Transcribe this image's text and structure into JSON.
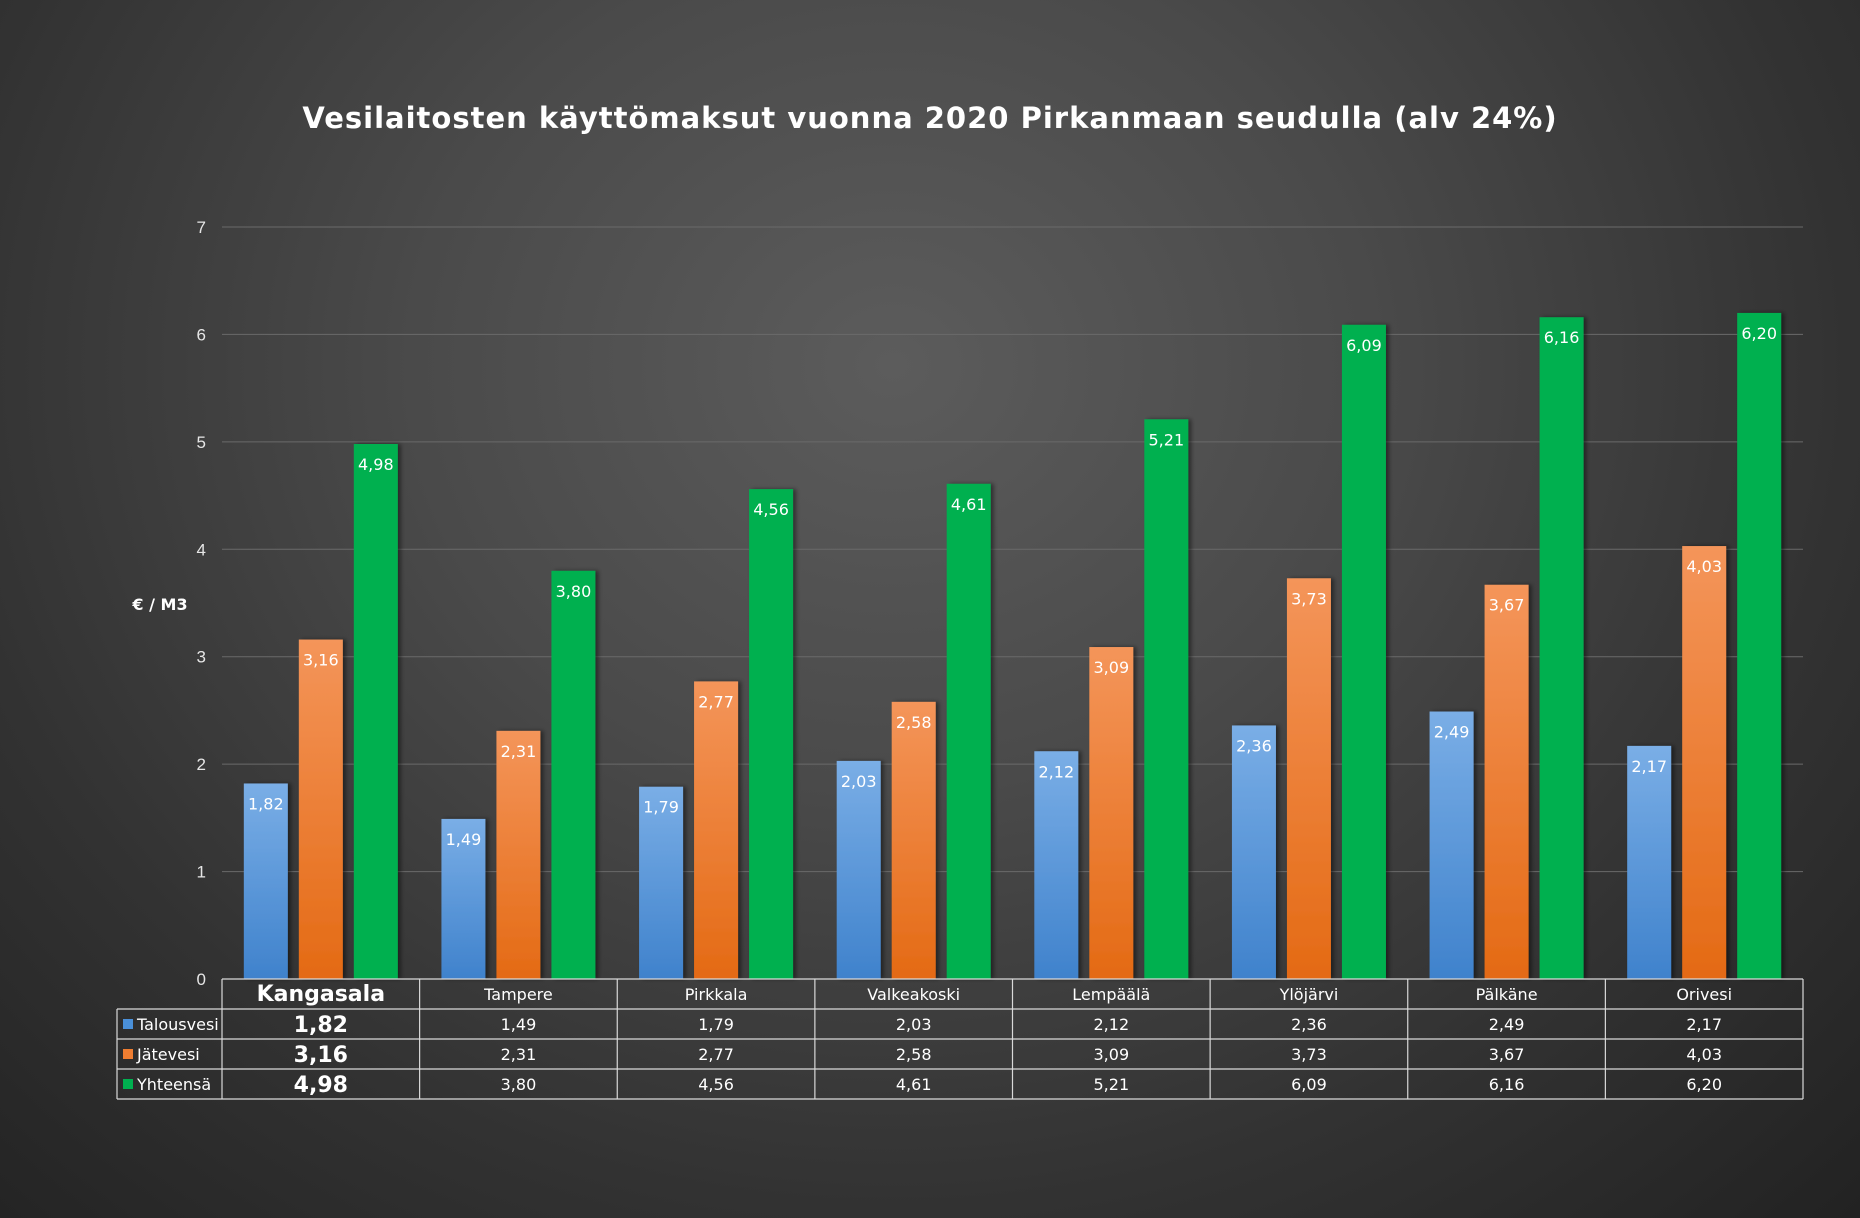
{
  "chart_data": {
    "type": "bar",
    "title": "Vesilaitosten käyttömaksut vuonna 2020 Pirkanmaan seudulla (alv 24%)",
    "ylabel": "€ / M3",
    "xlabel": "",
    "ylim": [
      0,
      7
    ],
    "yticks": [
      "0",
      "1",
      "2",
      "3",
      "4",
      "5",
      "6",
      "7"
    ],
    "grid": true,
    "legend": "data-table",
    "categories": [
      "Kangasala",
      "Tampere",
      "Pirkkala",
      "Valkeakoski",
      "Lempäälä",
      "Ylöjärvi",
      "Pälkäne",
      "Orivesi"
    ],
    "highlight_category": "Kangasala",
    "series": [
      {
        "name": "Talousvesi",
        "color": "#4a90d9",
        "values": [
          1.82,
          1.49,
          1.79,
          2.03,
          2.12,
          2.36,
          2.49,
          2.17
        ],
        "labels": [
          "1,82",
          "1,49",
          "1,79",
          "2,03",
          "2,12",
          "2,36",
          "2,49",
          "2,17"
        ]
      },
      {
        "name": "Jätevesi",
        "color": "#ee7d31",
        "values": [
          3.16,
          2.31,
          2.77,
          2.58,
          3.09,
          3.73,
          3.67,
          4.03
        ],
        "labels": [
          "3,16",
          "2,31",
          "2,77",
          "2,58",
          "3,09",
          "3,73",
          "3,67",
          "4,03"
        ]
      },
      {
        "name": "Yhteensä",
        "color": "#00b050",
        "values": [
          4.98,
          3.8,
          4.56,
          4.61,
          5.21,
          6.09,
          6.16,
          6.2
        ],
        "labels": [
          "4,98",
          "3,80",
          "4,56",
          "4,61",
          "5,21",
          "6,09",
          "6,16",
          "6,20"
        ]
      }
    ]
  }
}
